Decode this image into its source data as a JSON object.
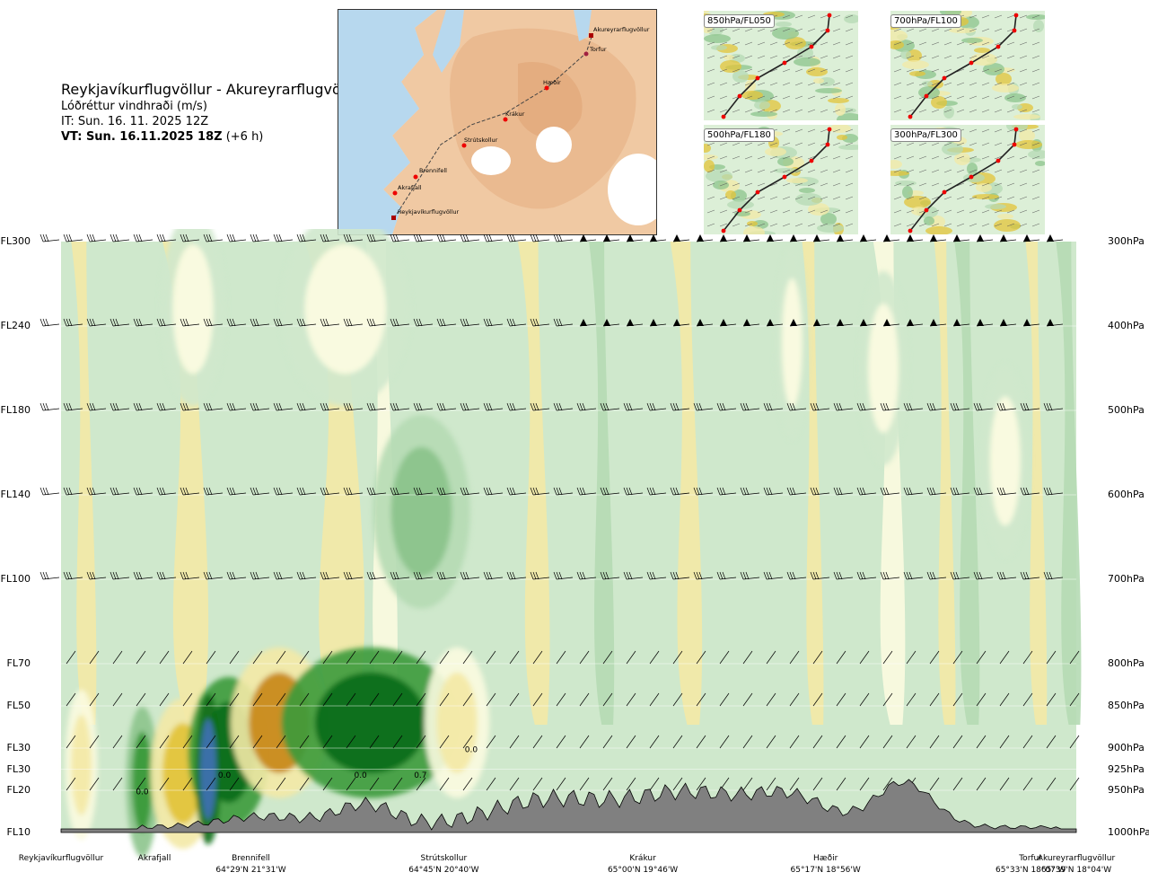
{
  "header": {
    "route": "Reykjavíkurflugvöllur - Akureyrarflugvöllur",
    "product": "Lóðréttur vindhraði (m/s)",
    "init_time": "IT: Sun. 16. 11. 2025 12Z",
    "valid_time": "VT: Sun. 16.11.2025 18Z",
    "valid_offset": "(+6 h)"
  },
  "map": {
    "route_points": [
      {
        "name": "Akureyrarflugvöllur"
      },
      {
        "name": "Torfur"
      },
      {
        "name": "Hæðir"
      },
      {
        "name": "Krákur"
      },
      {
        "name": "Strútskollur"
      },
      {
        "name": "Brennifell"
      },
      {
        "name": "Akrafjall"
      },
      {
        "name": "Reykjavíkurflugvöllur"
      }
    ]
  },
  "insets": [
    {
      "label": "850hPa/FL050"
    },
    {
      "label": "700hPa/FL100"
    },
    {
      "label": "500hPa/FL180"
    },
    {
      "label": "300hPa/FL300"
    }
  ],
  "chart_data": {
    "type": "heatmap",
    "variable": "Lóðréttur vindhraði (m/s)",
    "y_levels": [
      {
        "fl": "FL300",
        "hpa": "300hPa",
        "p": 300
      },
      {
        "fl": "FL240",
        "hpa": "400hPa",
        "p": 400
      },
      {
        "fl": "FL180",
        "hpa": "500hPa",
        "p": 500
      },
      {
        "fl": "FL140",
        "hpa": "600hPa",
        "p": 600
      },
      {
        "fl": "FL100",
        "hpa": "700hPa",
        "p": 700
      },
      {
        "fl": "FL70",
        "hpa": "800hPa",
        "p": 800
      },
      {
        "fl": "FL50",
        "hpa": "850hPa",
        "p": 850
      },
      {
        "fl": "FL30",
        "hpa": "900hPa",
        "p": 900
      },
      {
        "fl": "FL30",
        "hpa": "925hPa",
        "p": 925
      },
      {
        "fl": "FL20",
        "hpa": "950hPa",
        "p": 950
      },
      {
        "fl": "FL10",
        "hpa": "1000hPa",
        "p": 1000
      }
    ],
    "plim": [
      300,
      1000
    ],
    "waypoints": [
      {
        "name": "Reykjavíkurflugvöllur",
        "coord": "",
        "pos": 0.0
      },
      {
        "name": "Akrafjall",
        "coord": "",
        "pos": 0.092
      },
      {
        "name": "Brennifell",
        "coord": "64°29'N 21°31'W",
        "pos": 0.187
      },
      {
        "name": "Strútskollur",
        "coord": "64°45'N 20°40'W",
        "pos": 0.377
      },
      {
        "name": "Krákur",
        "coord": "65°00'N 19°46'W",
        "pos": 0.573
      },
      {
        "name": "Hæðir",
        "coord": "65°17'N 18°56'W",
        "pos": 0.753
      },
      {
        "name": "Torfur",
        "coord": "65°33'N 18°07'W",
        "pos": 0.955
      },
      {
        "name": "Akureyrarflugvöllur",
        "coord": "65°39'N 18°04'W",
        "pos": 1.0
      }
    ],
    "value_labels": [
      {
        "text": "0.0",
        "pos": 0.08,
        "p": 955
      },
      {
        "text": "0.0",
        "pos": 0.161,
        "p": 935
      },
      {
        "text": "0.0",
        "pos": 0.295,
        "p": 935
      },
      {
        "text": "0.7",
        "pos": 0.354,
        "p": 935
      },
      {
        "text": "0.0",
        "pos": 0.404,
        "p": 905
      }
    ],
    "cells": [
      {
        "pos": 0.02,
        "p": 920,
        "w": 0.01,
        "v": 0.4
      },
      {
        "pos": 0.08,
        "p": 940,
        "w": 0.01,
        "v": -0.6
      },
      {
        "pos": 0.12,
        "p": 930,
        "w": 0.02,
        "v": 0.9
      },
      {
        "pos": 0.165,
        "p": 905,
        "w": 0.025,
        "v": -1.0
      },
      {
        "pos": 0.145,
        "p": 925,
        "w": 0.008,
        "v": -1.5
      },
      {
        "pos": 0.215,
        "p": 870,
        "w": 0.03,
        "v": 1.2
      },
      {
        "pos": 0.305,
        "p": 870,
        "w": 0.055,
        "v": -0.9
      },
      {
        "pos": 0.39,
        "p": 870,
        "w": 0.02,
        "v": 0.4
      },
      {
        "pos": 0.355,
        "p": 620,
        "w": 0.03,
        "v": -0.2
      },
      {
        "pos": 0.13,
        "p": 380,
        "w": 0.02,
        "v": 0.2
      },
      {
        "pos": 0.28,
        "p": 380,
        "w": 0.04,
        "v": 0.2
      },
      {
        "pos": 0.72,
        "p": 420,
        "w": 0.01,
        "v": 0.2
      },
      {
        "pos": 0.81,
        "p": 450,
        "w": 0.015,
        "v": 0.2
      },
      {
        "pos": 0.93,
        "p": 560,
        "w": 0.015,
        "v": 0.2
      }
    ],
    "colorscale": [
      {
        "v": -2.0,
        "color": "#3d6fb0"
      },
      {
        "v": -1.0,
        "color": "#0e6e1a"
      },
      {
        "v": -0.6,
        "color": "#3a9a3a"
      },
      {
        "v": -0.3,
        "color": "#8cc48c"
      },
      {
        "v": -0.1,
        "color": "#b5dab4"
      },
      {
        "v": 0.0,
        "color": "#cfe8cc"
      },
      {
        "v": 0.1,
        "color": "#fbfbe0"
      },
      {
        "v": 0.3,
        "color": "#f3e9a6"
      },
      {
        "v": 0.6,
        "color": "#e3c43a"
      },
      {
        "v": 1.0,
        "color": "#c98a1c"
      },
      {
        "v": 1.5,
        "color": "#8e4514"
      }
    ]
  }
}
